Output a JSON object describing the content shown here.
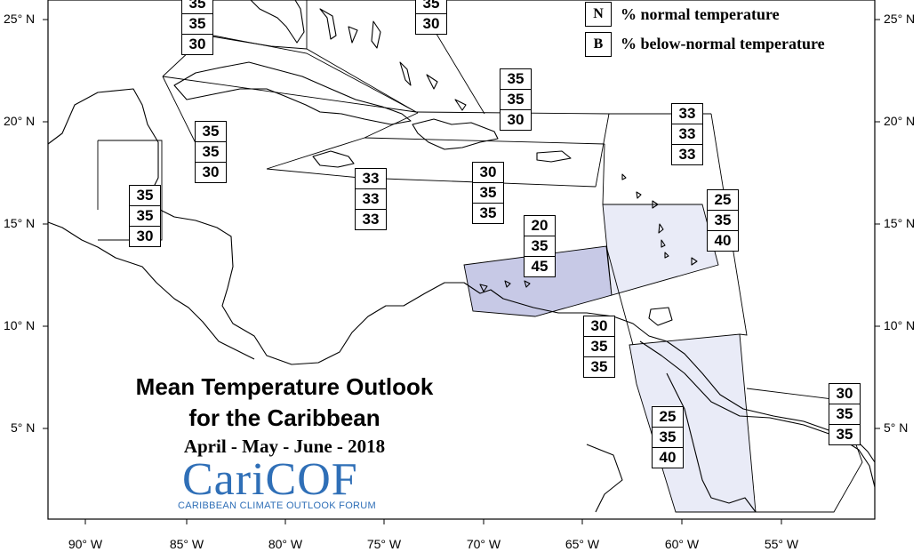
{
  "colors": {
    "below_high_fill": "#c7c9e6",
    "below_light_fill": "#e9ebf7",
    "logo_color": "#2f6fb7"
  },
  "legend": {
    "n_key": "N",
    "n_text": "% normal temperature",
    "b_key": "B",
    "b_text": "% below-normal temperature"
  },
  "title": {
    "line1": "Mean Temperature Outlook",
    "line2": "for the Caribbean",
    "period": "April - May - June - 2018"
  },
  "logo": {
    "name": "CariCOF",
    "subtitle": "CARIBBEAN CLIMATE OUTLOOK FORUM"
  },
  "lat_labels": [
    "25° N",
    "20° N",
    "15° N",
    "10° N",
    "5° N"
  ],
  "lon_labels": [
    "90° W",
    "85° W",
    "80° W",
    "75° W",
    "70° W",
    "65° W",
    "60° W",
    "55° W"
  ],
  "regions": [
    {
      "id": "bahamas-west",
      "values": [
        "35",
        "35",
        "30"
      ]
    },
    {
      "id": "bahamas-east",
      "values": [
        "35",
        "30"
      ]
    },
    {
      "id": "turks-caicos",
      "values": [
        "35",
        "35",
        "30"
      ]
    },
    {
      "id": "cuba",
      "values": [
        "35",
        "35",
        "30"
      ]
    },
    {
      "id": "belize",
      "values": [
        "35",
        "35",
        "30"
      ]
    },
    {
      "id": "jamaica",
      "values": [
        "33",
        "33",
        "33"
      ]
    },
    {
      "id": "hispaniola",
      "values": [
        "30",
        "35",
        "35"
      ]
    },
    {
      "id": "north-leewards",
      "values": [
        "33",
        "33",
        "33"
      ]
    },
    {
      "id": "windwards",
      "values": [
        "25",
        "35",
        "40"
      ]
    },
    {
      "id": "abc-islands",
      "values": [
        "20",
        "35",
        "45"
      ]
    },
    {
      "id": "trinidad",
      "values": [
        "30",
        "35",
        "35"
      ]
    },
    {
      "id": "guyana",
      "values": [
        "25",
        "35",
        "40"
      ]
    },
    {
      "id": "french-guiana",
      "values": [
        "30",
        "35",
        "35"
      ]
    }
  ]
}
